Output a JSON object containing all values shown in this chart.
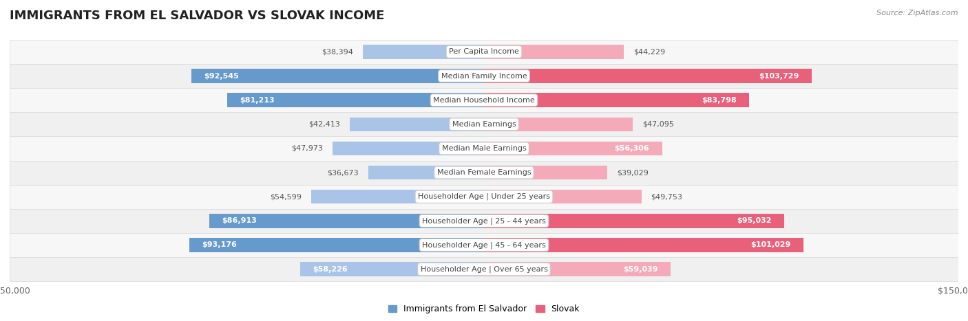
{
  "title": "IMMIGRANTS FROM EL SALVADOR VS SLOVAK INCOME",
  "source": "Source: ZipAtlas.com",
  "categories": [
    "Per Capita Income",
    "Median Family Income",
    "Median Household Income",
    "Median Earnings",
    "Median Male Earnings",
    "Median Female Earnings",
    "Householder Age | Under 25 years",
    "Householder Age | 25 - 44 years",
    "Householder Age | 45 - 64 years",
    "Householder Age | Over 65 years"
  ],
  "el_salvador_values": [
    38394,
    92545,
    81213,
    42413,
    47973,
    36673,
    54599,
    86913,
    93176,
    58226
  ],
  "slovak_values": [
    44229,
    103729,
    83798,
    47095,
    56306,
    39029,
    49753,
    95032,
    101029,
    59039
  ],
  "el_salvador_labels": [
    "$38,394",
    "$92,545",
    "$81,213",
    "$42,413",
    "$47,973",
    "$36,673",
    "$54,599",
    "$86,913",
    "$93,176",
    "$58,226"
  ],
  "slovak_labels": [
    "$44,229",
    "$103,729",
    "$83,798",
    "$47,095",
    "$56,306",
    "$39,029",
    "$49,753",
    "$95,032",
    "$101,029",
    "$59,039"
  ],
  "el_salvador_color_light": "#aac4e8",
  "el_salvador_color_dark": "#6699cc",
  "slovak_color_light": "#f4aab8",
  "slovak_color_dark": "#e8607a",
  "max_value": 150000,
  "row_bg_even": "#f7f7f7",
  "row_bg_odd": "#f0f0f0",
  "row_border": "#d8d8d8",
  "title_fontsize": 13,
  "bar_height": 0.58,
  "inside_threshold": 60000,
  "legend_label_1": "Immigrants from El Salvador",
  "legend_label_2": "Slovak"
}
